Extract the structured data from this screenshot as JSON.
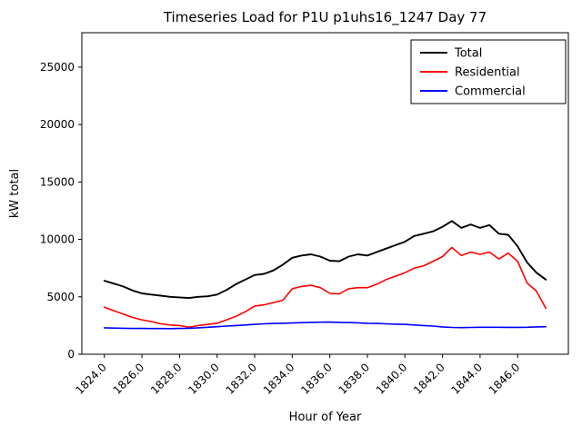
{
  "chart_data": {
    "type": "line",
    "title": "Timeseries Load for P1U p1uhs16_1247  Day 77",
    "xlabel": "Hour of Year",
    "ylabel": "kW total",
    "grid": false,
    "legend_position": "upper right",
    "xlim": [
      1822.8,
      1848.7
    ],
    "ylim": [
      0,
      28000
    ],
    "xticks": [
      1824,
      1826,
      1828,
      1830,
      1832,
      1834,
      1836,
      1838,
      1840,
      1842,
      1844,
      1846
    ],
    "xtick_labels": [
      "1824.0",
      "1826.0",
      "1828.0",
      "1830.0",
      "1832.0",
      "1834.0",
      "1836.0",
      "1838.0",
      "1840.0",
      "1842.0",
      "1844.0",
      "1846.0"
    ],
    "yticks": [
      0,
      5000,
      10000,
      15000,
      20000,
      25000
    ],
    "ytick_labels": [
      "0",
      "5000",
      "10000",
      "15000",
      "20000",
      "25000"
    ],
    "x": [
      1824.0,
      1824.5,
      1825.0,
      1825.5,
      1826.0,
      1826.5,
      1827.0,
      1827.5,
      1828.0,
      1828.5,
      1829.0,
      1829.5,
      1830.0,
      1830.5,
      1831.0,
      1831.5,
      1832.0,
      1832.5,
      1833.0,
      1833.5,
      1834.0,
      1834.5,
      1835.0,
      1835.5,
      1836.0,
      1836.5,
      1837.0,
      1837.5,
      1838.0,
      1838.5,
      1839.0,
      1839.5,
      1840.0,
      1840.5,
      1841.0,
      1841.5,
      1842.0,
      1842.5,
      1843.0,
      1843.5,
      1844.0,
      1844.5,
      1845.0,
      1845.5,
      1846.0,
      1846.5,
      1847.0,
      1847.5
    ],
    "series": [
      {
        "name": "Total",
        "color": "#000000",
        "values": [
          6400,
          6150,
          5900,
          5550,
          5300,
          5200,
          5100,
          5000,
          4950,
          4900,
          5000,
          5050,
          5200,
          5600,
          6100,
          6500,
          6900,
          7000,
          7300,
          7800,
          8400,
          8600,
          8700,
          8500,
          8150,
          8100,
          8500,
          8700,
          8600,
          8900,
          9200,
          9500,
          9800,
          10300,
          10500,
          10700,
          11100,
          11600,
          11000,
          11300,
          11000,
          11250,
          10500,
          10400,
          9400,
          8000,
          7100,
          6500
        ]
      },
      {
        "name": "Residential",
        "color": "#ff0000",
        "values": [
          4100,
          3800,
          3500,
          3200,
          3000,
          2850,
          2650,
          2550,
          2500,
          2350,
          2500,
          2600,
          2700,
          3000,
          3300,
          3700,
          4200,
          4300,
          4500,
          4700,
          5700,
          5900,
          6000,
          5800,
          5300,
          5250,
          5700,
          5800,
          5800,
          6100,
          6500,
          6800,
          7100,
          7500,
          7700,
          8100,
          8500,
          9300,
          8600,
          8900,
          8700,
          8900,
          8300,
          8800,
          8100,
          6200,
          5500,
          4000
        ]
      },
      {
        "name": "Commercial",
        "color": "#0000ff",
        "values": [
          2300,
          2280,
          2260,
          2250,
          2250,
          2240,
          2240,
          2230,
          2250,
          2260,
          2300,
          2350,
          2400,
          2450,
          2500,
          2550,
          2600,
          2650,
          2680,
          2700,
          2720,
          2750,
          2780,
          2790,
          2800,
          2780,
          2760,
          2740,
          2700,
          2680,
          2650,
          2620,
          2600,
          2550,
          2500,
          2450,
          2380,
          2330,
          2320,
          2330,
          2350,
          2350,
          2350,
          2340,
          2340,
          2350,
          2380,
          2400
        ]
      }
    ]
  }
}
